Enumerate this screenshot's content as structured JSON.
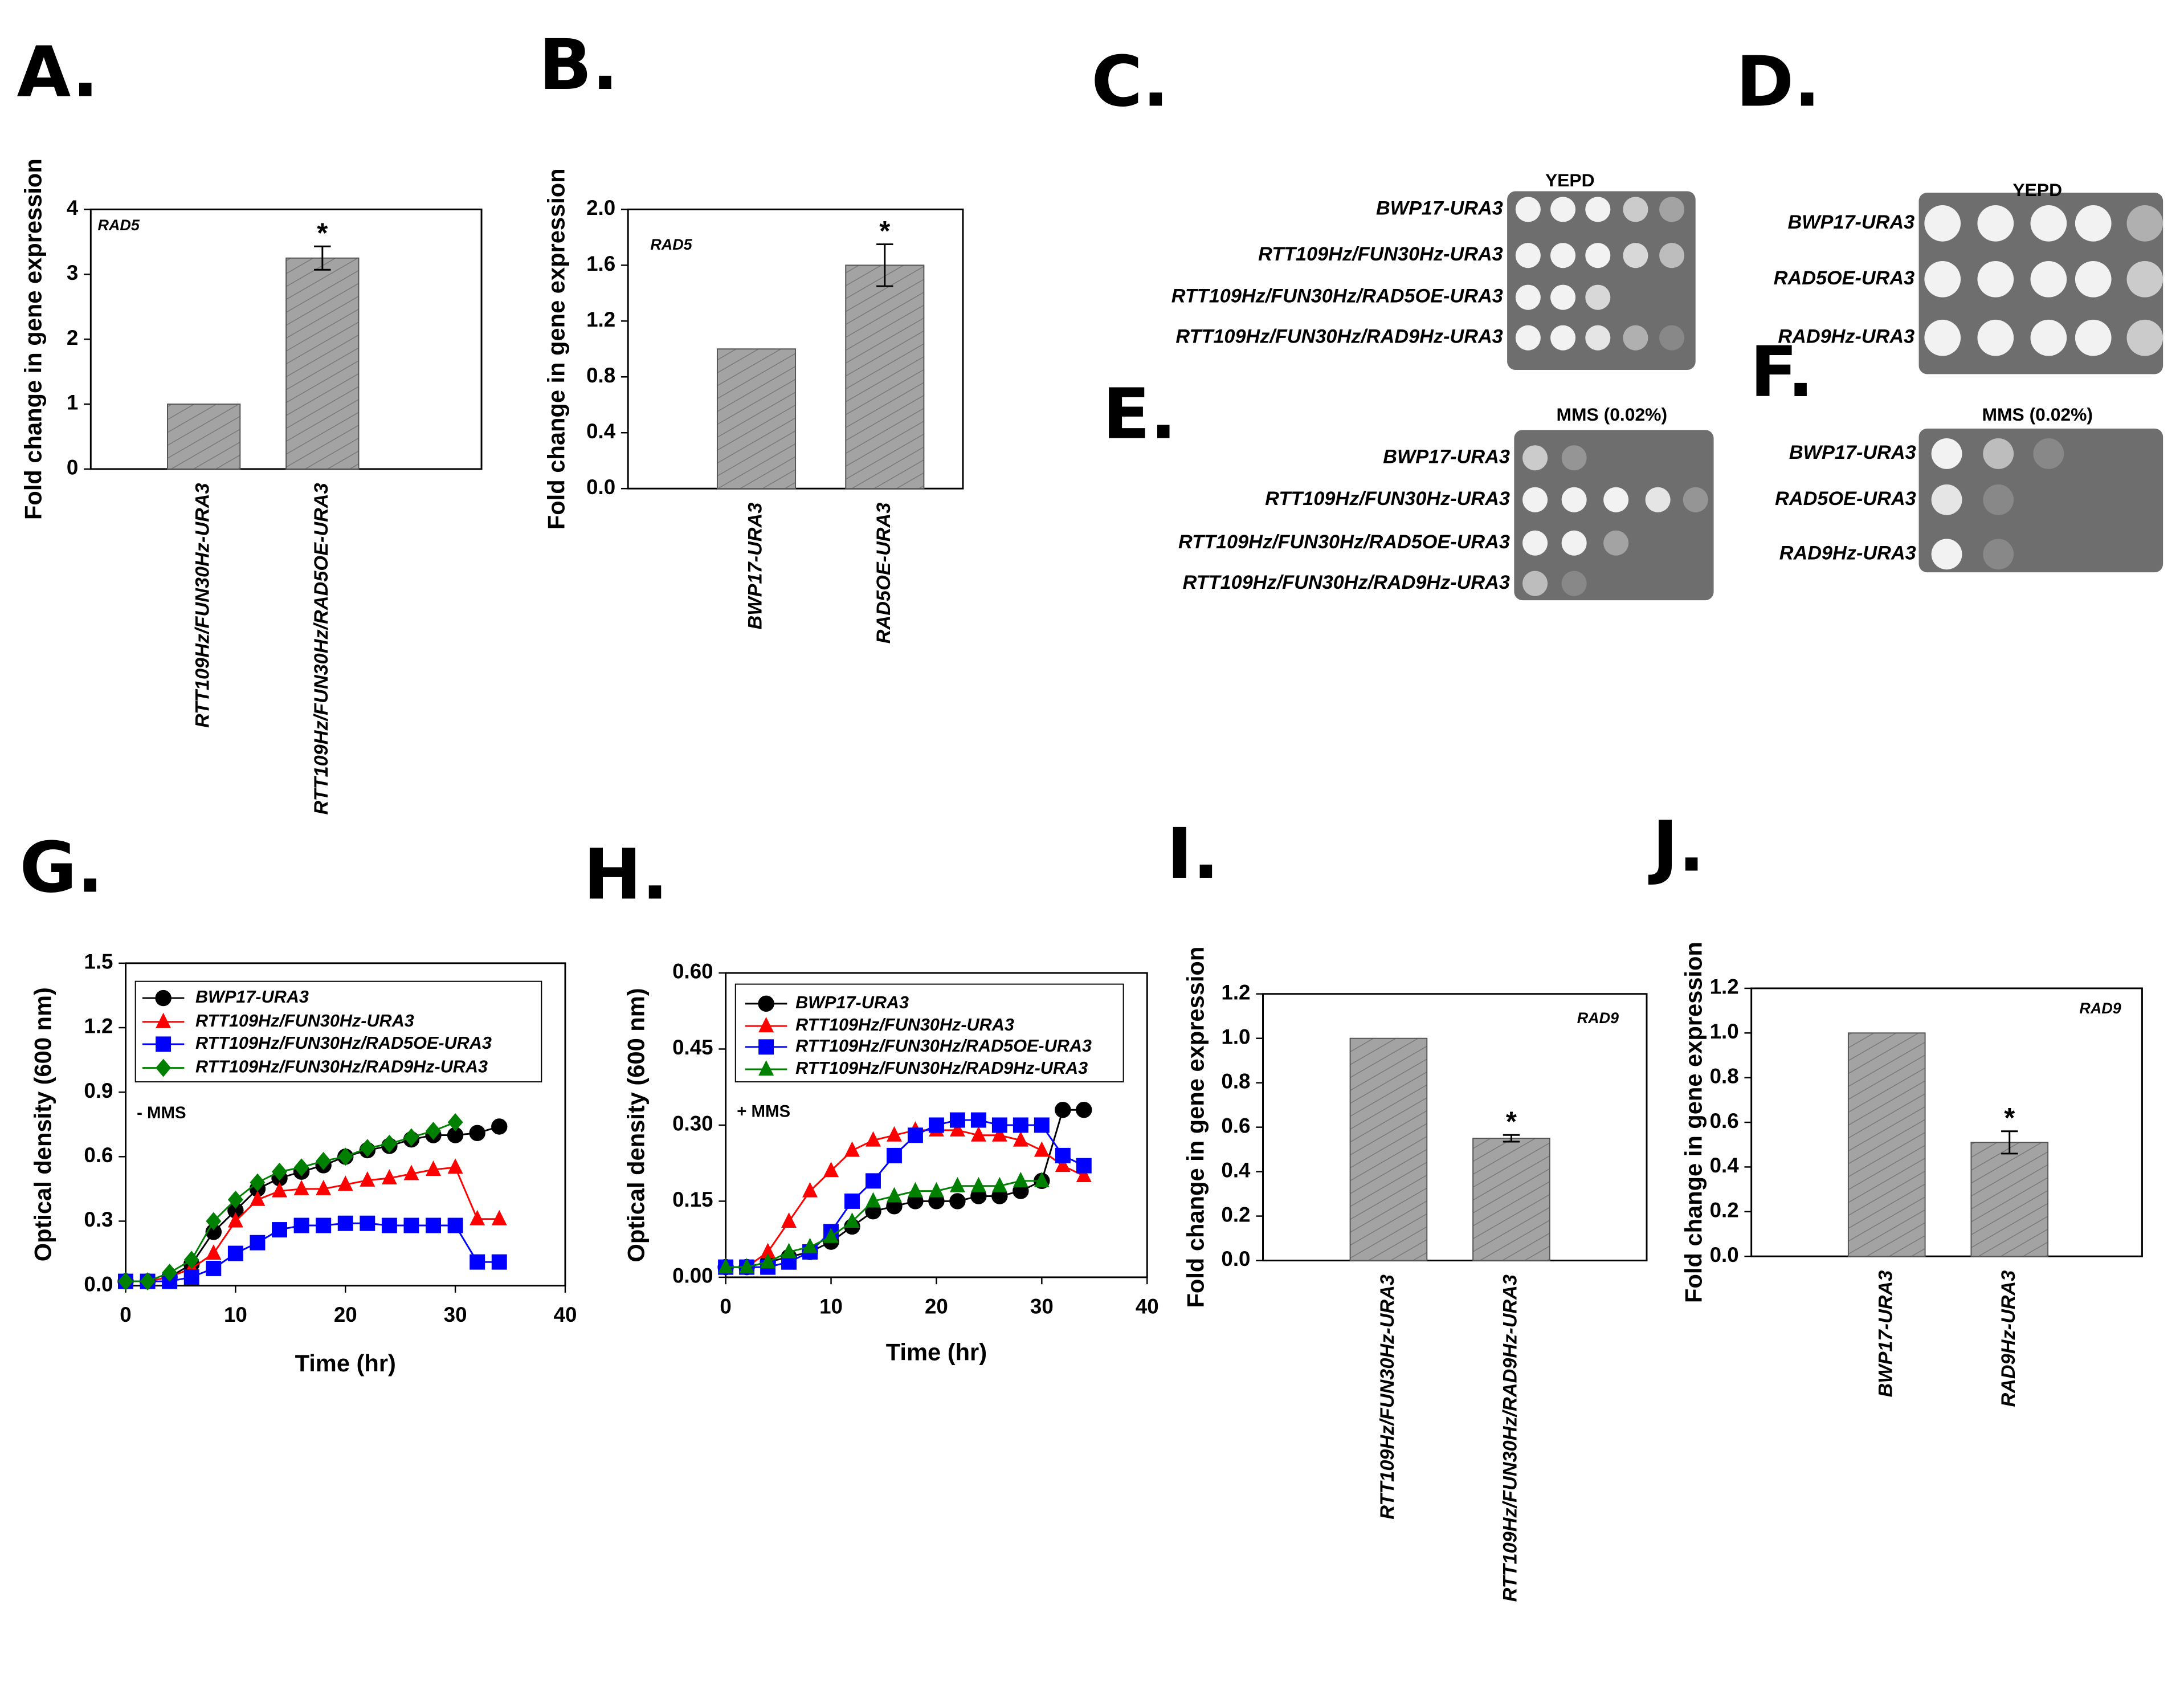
{
  "panel_labels": [
    "A.",
    "B.",
    "C.",
    "D.",
    "E.",
    "F.",
    "G.",
    "H.",
    "I.",
    "J."
  ],
  "chart_data": [
    {
      "type": "bar",
      "annotation": "RAD5",
      "ylabel": "Fold change in gene expression",
      "categories": [
        "RTT109Hz/FUN30Hz-URA3",
        "RTT109Hz/FUN30Hz/RAD5OE-URA3"
      ],
      "values": [
        1,
        3.25
      ],
      "errors": [
        null,
        0.18
      ],
      "significance": [
        null,
        "*"
      ],
      "color": "#a3a3a3",
      "ylim": [
        0,
        4
      ],
      "yticks": [
        0,
        1,
        2,
        3,
        4
      ]
    },
    {
      "type": "bar",
      "annotation": "RAD5",
      "ylabel": "Fold change in gene expression",
      "categories": [
        "BWP17-URA3",
        "RAD5OE-URA3"
      ],
      "values": [
        1,
        1.6
      ],
      "errors": [
        null,
        0.15
      ],
      "significance": [
        null,
        "*"
      ],
      "color": "#a3a3a3",
      "ylim": [
        0,
        2
      ],
      "yticks": [
        {
          "value": 0,
          "label": "0.0"
        },
        0.4,
        0.8,
        1.2,
        1.6,
        {
          "value": 2,
          "label": "2.0"
        }
      ]
    },
    {
      "type": "line",
      "annotation": "- MMS",
      "xlabel": "Time (hr)",
      "ylabel": "Optical density (600 nm)",
      "legend": "upper left",
      "x": [
        0,
        2,
        4,
        6,
        8,
        10,
        12,
        14,
        16,
        18,
        20,
        22,
        24,
        26,
        28,
        30,
        32,
        34
      ],
      "xlim": [
        0,
        40
      ],
      "xticks": [
        0,
        10,
        20,
        30,
        40
      ],
      "ylim": [
        0,
        1.5
      ],
      "yticks": [
        {
          "value": 0,
          "label": "0.0"
        },
        0.3,
        0.6,
        0.9,
        1.2,
        1.5
      ],
      "series": [
        {
          "name": "BWP17-URA3",
          "color": "#000000",
          "marker": "circle",
          "values": [
            0.02,
            0.02,
            0.04,
            0.1,
            0.25,
            0.35,
            0.45,
            0.5,
            0.53,
            0.56,
            0.6,
            0.63,
            0.65,
            0.68,
            0.7,
            0.7,
            0.71,
            0.74
          ]
        },
        {
          "name": "RTT109Hz/FUN30Hz-URA3",
          "color": "#ff0000",
          "marker": "triangle",
          "values": [
            0.02,
            0.02,
            0.04,
            0.08,
            0.15,
            0.3,
            0.4,
            0.44,
            0.45,
            0.45,
            0.47,
            0.49,
            0.5,
            0.52,
            0.54,
            0.55,
            0.31,
            0.31
          ]
        },
        {
          "name": "RTT109Hz/FUN30Hz/RAD5OE-URA3",
          "color": "#0000ff",
          "marker": "square",
          "values": [
            0.02,
            0.02,
            0.02,
            0.04,
            0.08,
            0.15,
            0.2,
            0.26,
            0.28,
            0.28,
            0.29,
            0.29,
            0.28,
            0.28,
            0.28,
            0.28,
            0.11,
            0.11
          ]
        },
        {
          "name": "RTT109Hz/FUN30Hz/RAD9Hz-URA3",
          "color": "#008000",
          "marker": "diamond",
          "values": [
            0.02,
            0.02,
            0.06,
            0.12,
            0.3,
            0.4,
            0.48,
            0.53,
            0.55,
            0.58,
            0.6,
            0.64,
            0.66,
            0.69,
            0.72,
            0.76,
            null,
            null
          ]
        }
      ]
    },
    {
      "type": "line",
      "annotation": "+ MMS",
      "xlabel": "Time (hr)",
      "ylabel": "Optical density (600 nm)",
      "legend": "upper left",
      "x": [
        0,
        2,
        4,
        6,
        8,
        10,
        12,
        14,
        16,
        18,
        20,
        22,
        24,
        26,
        28,
        30,
        32,
        34
      ],
      "xlim": [
        0,
        40
      ],
      "xticks": [
        0,
        10,
        20,
        30,
        40
      ],
      "ylim": [
        0,
        0.6
      ],
      "yticks": [
        {
          "value": 0,
          "label": "0.00"
        },
        0.15,
        {
          "value": 0.3,
          "label": "0.30"
        },
        0.45,
        {
          "value": 0.6,
          "label": "0.60"
        }
      ],
      "series": [
        {
          "name": "BWP17-URA3",
          "color": "#000000",
          "marker": "circle",
          "values": [
            0.02,
            0.02,
            0.03,
            0.04,
            0.05,
            0.07,
            0.1,
            0.13,
            0.14,
            0.15,
            0.15,
            0.15,
            0.16,
            0.16,
            0.17,
            0.19,
            0.33,
            0.33
          ]
        },
        {
          "name": "RTT109Hz/FUN30Hz-URA3",
          "color": "#ff0000",
          "marker": "triangle",
          "values": [
            0.02,
            0.02,
            0.05,
            0.11,
            0.17,
            0.21,
            0.25,
            0.27,
            0.28,
            0.29,
            0.29,
            0.29,
            0.28,
            0.28,
            0.27,
            0.25,
            0.22,
            0.2
          ]
        },
        {
          "name": "RTT109Hz/FUN30Hz/RAD5OE-URA3",
          "color": "#0000ff",
          "marker": "square",
          "values": [
            0.02,
            0.02,
            0.02,
            0.03,
            0.05,
            0.09,
            0.15,
            0.19,
            0.24,
            0.28,
            0.3,
            0.31,
            0.31,
            0.3,
            0.3,
            0.3,
            0.24,
            0.22
          ]
        },
        {
          "name": "RTT109Hz/FUN30Hz/RAD9Hz-URA3",
          "color": "#008000",
          "marker": "triangle",
          "values": [
            0.02,
            0.02,
            0.03,
            0.05,
            0.06,
            0.08,
            0.11,
            0.15,
            0.16,
            0.17,
            0.17,
            0.18,
            0.18,
            0.18,
            0.19,
            0.19,
            null,
            null
          ]
        }
      ]
    },
    {
      "type": "bar",
      "annotation": "RAD9",
      "ylabel": "Fold change in gene expression",
      "categories": [
        "RTT109Hz/FUN30Hz-URA3",
        "RTT109Hz/FUN30Hz/RAD9Hz-URA3"
      ],
      "values": [
        1,
        0.55
      ],
      "errors": [
        null,
        0.015
      ],
      "significance": [
        null,
        "*"
      ],
      "color": "#a3a3a3",
      "ylim": [
        0,
        1.2
      ],
      "yticks": [
        {
          "value": 0,
          "label": "0.0"
        },
        0.2,
        0.4,
        0.6,
        0.8,
        {
          "value": 1,
          "label": "1.0"
        },
        1.2
      ]
    },
    {
      "type": "bar",
      "annotation": "RAD9",
      "ylabel": "Fold change in gene expression",
      "categories": [
        "BWP17-URA3",
        "RAD9Hz-URA3"
      ],
      "values": [
        1,
        0.51
      ],
      "errors": [
        null,
        0.05
      ],
      "significance": [
        null,
        "*"
      ],
      "color": "#a3a3a3",
      "ylim": [
        0,
        1.2
      ],
      "yticks": [
        {
          "value": 0,
          "label": "0.0"
        },
        0.2,
        0.4,
        0.6,
        0.8,
        {
          "value": 1,
          "label": "1.0"
        },
        1.2
      ]
    }
  ],
  "spot_assays": [
    {
      "title": "YEPD",
      "strains": [
        "BWP17-URA3",
        "RTT109Hz/FUN30Hz-URA3",
        "RTT109Hz/FUN30Hz/RAD5OE-URA3",
        "RTT109Hz/FUN30Hz/RAD9Hz-URA3"
      ]
    },
    {
      "title": "YEPD",
      "strains": [
        "BWP17-URA3",
        "RAD5OE-URA3",
        "RAD9Hz-URA3"
      ]
    },
    {
      "title": "MMS (0.02%)",
      "strains": [
        "BWP17-URA3",
        "RTT109Hz/FUN30Hz-URA3",
        "RTT109Hz/FUN30Hz/RAD5OE-URA3",
        "RTT109Hz/FUN30Hz/RAD9Hz-URA3"
      ]
    },
    {
      "title": "MMS (0.02%)",
      "strains": [
        "BWP17-URA3",
        "RAD5OE-URA3",
        "RAD9Hz-URA3"
      ]
    }
  ]
}
